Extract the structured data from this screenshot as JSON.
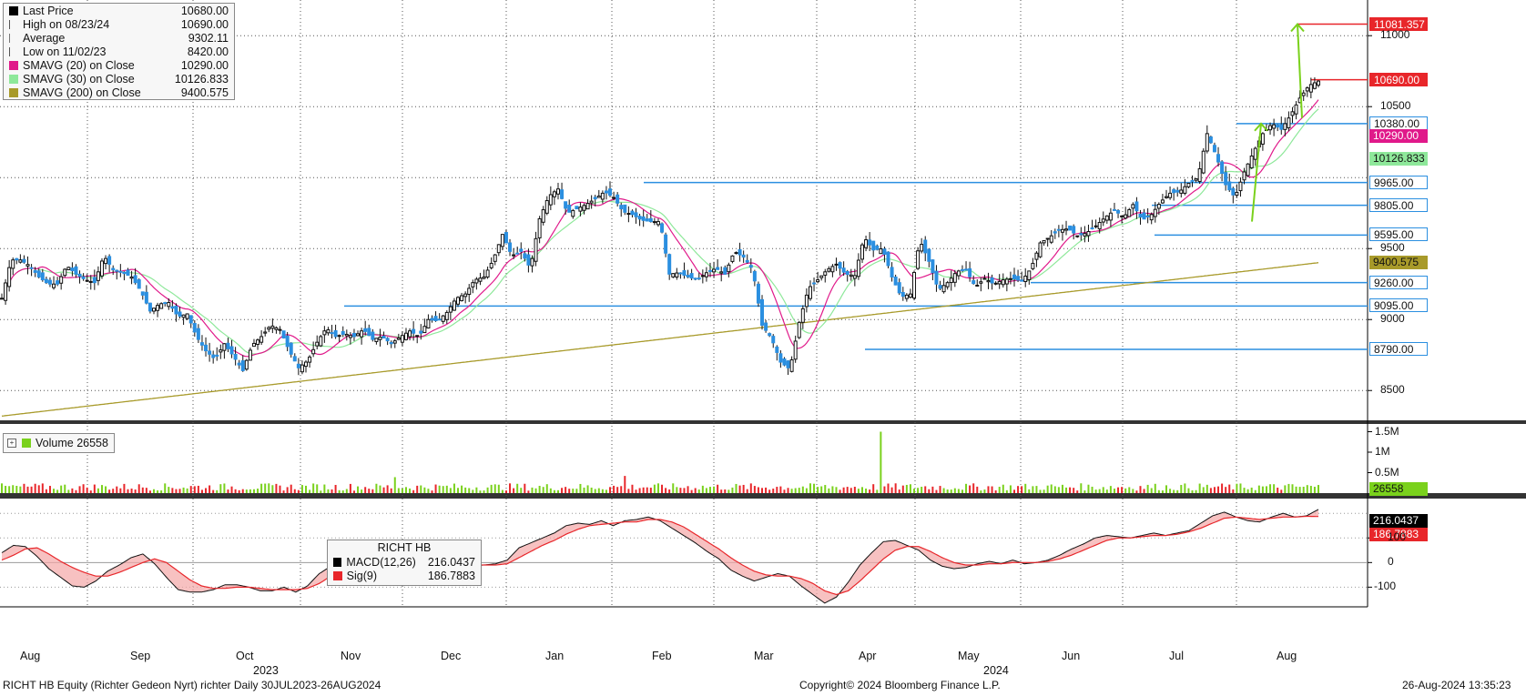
{
  "legend_price": [
    {
      "icon": "black-square-icon",
      "color": "#000000",
      "label": "Last Price",
      "value": "10680.00"
    },
    {
      "icon": "high-marker-icon",
      "color": "#555555",
      "label": "High on 08/23/24",
      "value": "10690.00"
    },
    {
      "icon": "average-marker-icon",
      "color": "#777777",
      "label": "Average",
      "value": "9302.11"
    },
    {
      "icon": "low-marker-icon",
      "color": "#555555",
      "label": "Low on 11/02/23",
      "value": "8420.00"
    },
    {
      "icon": "pink-square-icon",
      "color": "#e0198a",
      "label": "SMAVG (20)  on Close",
      "value": "10290.00"
    },
    {
      "icon": "lightgreen-square-icon",
      "color": "#8ee89a",
      "label": "SMAVG (30)  on Close",
      "value": "10126.833"
    },
    {
      "icon": "olive-square-icon",
      "color": "#a89a2a",
      "label": "SMAVG (200)  on Close",
      "value": "9400.575"
    }
  ],
  "legend_volume": {
    "label": "Volume",
    "value": "26558",
    "color": "#7ad11c"
  },
  "legend_macd": {
    "title": "RICHT HB",
    "rows": [
      {
        "label": "MACD(12,26)",
        "value": "216.0437",
        "color": "#000000"
      },
      {
        "label": "Sig(9)",
        "value": "186.7883",
        "color": "#e8262a"
      }
    ]
  },
  "footer": {
    "left": "RICHT HB Equity (Richter Gedeon Nyrt)  richter   Daily 30JUL2023-26AUG2024",
    "center": "Copyright© 2024 Bloomberg Finance L.P.",
    "right": "26-Aug-2024 13:35:23"
  },
  "chart_data": {
    "type": "candlestick",
    "months": [
      "Aug",
      "Sep",
      "Oct",
      "Nov",
      "Dec",
      "Jan",
      "Feb",
      "Mar",
      "Apr",
      "May",
      "Jun",
      "Jul",
      "Aug"
    ],
    "years": [
      "2023",
      "2024"
    ],
    "price_axis": {
      "ticks": [
        8500,
        9000,
        9500,
        10000,
        10500,
        11000
      ],
      "tick_labels": [
        "8500",
        "9000",
        "9500",
        "",
        "10500",
        "11000"
      ],
      "ylim": [
        8290,
        11200
      ]
    },
    "volume_axis": {
      "ticks": [
        "0.5M",
        "1M",
        "1.5M"
      ],
      "ylim": [
        0,
        1600000
      ]
    },
    "macd_axis": {
      "ticks": [
        -100,
        0,
        100,
        200
      ],
      "tick_labels": [
        "-100",
        "0",
        "100",
        "200"
      ],
      "ylim": [
        -180,
        260
      ]
    },
    "price_anchors": [
      [
        0,
        9150
      ],
      [
        5,
        9420
      ],
      [
        10,
        9420
      ],
      [
        15,
        9380
      ],
      [
        20,
        9300
      ],
      [
        25,
        9250
      ],
      [
        30,
        9250
      ],
      [
        35,
        9380
      ],
      [
        40,
        9320
      ],
      [
        45,
        9280
      ],
      [
        50,
        9260
      ],
      [
        55,
        9450
      ],
      [
        60,
        9350
      ],
      [
        65,
        9330
      ],
      [
        70,
        9300
      ],
      [
        75,
        9200
      ],
      [
        80,
        9060
      ],
      [
        85,
        9110
      ],
      [
        90,
        9120
      ],
      [
        95,
        9020
      ],
      [
        100,
        9040
      ],
      [
        105,
        8880
      ],
      [
        110,
        8780
      ],
      [
        115,
        8720
      ],
      [
        120,
        8830
      ],
      [
        125,
        8740
      ],
      [
        130,
        8640
      ],
      [
        135,
        8820
      ],
      [
        140,
        8880
      ],
      [
        145,
        8960
      ],
      [
        150,
        8930
      ],
      [
        155,
        8780
      ],
      [
        160,
        8660
      ],
      [
        165,
        8710
      ],
      [
        170,
        8840
      ],
      [
        175,
        8940
      ],
      [
        180,
        8880
      ],
      [
        185,
        8900
      ],
      [
        190,
        8880
      ],
      [
        195,
        8930
      ],
      [
        200,
        8860
      ],
      [
        205,
        8880
      ],
      [
        210,
        8830
      ],
      [
        215,
        8880
      ],
      [
        220,
        8920
      ],
      [
        225,
        8880
      ],
      [
        230,
        9000
      ],
      [
        235,
        8990
      ],
      [
        240,
        9050
      ],
      [
        245,
        9150
      ],
      [
        250,
        9180
      ],
      [
        255,
        9280
      ],
      [
        260,
        9300
      ],
      [
        265,
        9420
      ],
      [
        270,
        9600
      ],
      [
        275,
        9450
      ],
      [
        280,
        9480
      ],
      [
        285,
        9360
      ],
      [
        290,
        9710
      ],
      [
        295,
        9870
      ],
      [
        300,
        9920
      ],
      [
        305,
        9750
      ],
      [
        310,
        9780
      ],
      [
        315,
        9810
      ],
      [
        320,
        9850
      ],
      [
        325,
        9900
      ],
      [
        330,
        9860
      ],
      [
        335,
        9760
      ],
      [
        340,
        9740
      ],
      [
        345,
        9700
      ],
      [
        350,
        9690
      ],
      [
        355,
        9690
      ],
      [
        360,
        9320
      ],
      [
        365,
        9330
      ],
      [
        370,
        9300
      ],
      [
        375,
        9280
      ],
      [
        380,
        9330
      ],
      [
        385,
        9360
      ],
      [
        390,
        9320
      ],
      [
        395,
        9480
      ],
      [
        400,
        9440
      ],
      [
        405,
        9350
      ],
      [
        410,
        8960
      ],
      [
        415,
        8870
      ],
      [
        420,
        8700
      ],
      [
        425,
        8650
      ],
      [
        430,
        8980
      ],
      [
        435,
        9220
      ],
      [
        440,
        9280
      ],
      [
        445,
        9350
      ],
      [
        450,
        9390
      ],
      [
        455,
        9320
      ],
      [
        460,
        9310
      ],
      [
        465,
        9580
      ],
      [
        470,
        9490
      ],
      [
        475,
        9500
      ],
      [
        480,
        9300
      ],
      [
        485,
        9160
      ],
      [
        490,
        9180
      ],
      [
        495,
        9560
      ],
      [
        500,
        9410
      ],
      [
        505,
        9210
      ],
      [
        510,
        9260
      ],
      [
        515,
        9340
      ],
      [
        520,
        9350
      ],
      [
        525,
        9230
      ],
      [
        530,
        9290
      ],
      [
        535,
        9250
      ],
      [
        540,
        9280
      ],
      [
        545,
        9290
      ],
      [
        550,
        9270
      ],
      [
        555,
        9360
      ],
      [
        560,
        9540
      ],
      [
        565,
        9580
      ],
      [
        570,
        9630
      ],
      [
        575,
        9640
      ],
      [
        580,
        9590
      ],
      [
        585,
        9610
      ],
      [
        590,
        9660
      ],
      [
        595,
        9720
      ],
      [
        600,
        9770
      ],
      [
        605,
        9720
      ],
      [
        610,
        9810
      ],
      [
        615,
        9700
      ],
      [
        620,
        9740
      ],
      [
        625,
        9830
      ],
      [
        630,
        9890
      ],
      [
        635,
        9900
      ],
      [
        640,
        9960
      ],
      [
        645,
        10000
      ],
      [
        650,
        10310
      ],
      [
        655,
        10150
      ],
      [
        660,
        9950
      ],
      [
        665,
        9860
      ],
      [
        670,
        10040
      ],
      [
        675,
        10180
      ],
      [
        680,
        10310
      ],
      [
        685,
        10380
      ],
      [
        690,
        10340
      ],
      [
        695,
        10440
      ],
      [
        700,
        10560
      ],
      [
        705,
        10650
      ],
      [
        710,
        10680
      ]
    ],
    "volume_spikes": [
      [
        474,
        1500000
      ],
      [
        336,
        420000
      ],
      [
        212,
        390000
      ]
    ],
    "macd_anchors": [
      [
        0,
        40
      ],
      [
        5,
        70
      ],
      [
        10,
        65
      ],
      [
        15,
        25
      ],
      [
        20,
        -25
      ],
      [
        25,
        -60
      ],
      [
        30,
        -95
      ],
      [
        35,
        -100
      ],
      [
        40,
        -75
      ],
      [
        45,
        -35
      ],
      [
        50,
        -10
      ],
      [
        55,
        20
      ],
      [
        60,
        35
      ],
      [
        65,
        -5
      ],
      [
        70,
        -60
      ],
      [
        75,
        -110
      ],
      [
        80,
        -120
      ],
      [
        85,
        -120
      ],
      [
        90,
        -110
      ],
      [
        95,
        -90
      ],
      [
        100,
        -90
      ],
      [
        105,
        -100
      ],
      [
        110,
        -115
      ],
      [
        115,
        -115
      ],
      [
        120,
        -100
      ],
      [
        125,
        -120
      ],
      [
        130,
        -95
      ],
      [
        135,
        -45
      ],
      [
        140,
        -15
      ],
      [
        145,
        35
      ],
      [
        150,
        20
      ],
      [
        155,
        -40
      ],
      [
        160,
        -60
      ],
      [
        165,
        -45
      ],
      [
        170,
        -25
      ],
      [
        175,
        -10
      ],
      [
        180,
        0
      ],
      [
        185,
        5
      ],
      [
        190,
        5
      ],
      [
        195,
        -5
      ],
      [
        200,
        -15
      ],
      [
        205,
        -10
      ],
      [
        210,
        -5
      ],
      [
        215,
        10
      ],
      [
        220,
        60
      ],
      [
        225,
        80
      ],
      [
        230,
        100
      ],
      [
        235,
        120
      ],
      [
        240,
        150
      ],
      [
        245,
        160
      ],
      [
        250,
        155
      ],
      [
        255,
        170
      ],
      [
        260,
        150
      ],
      [
        265,
        170
      ],
      [
        270,
        175
      ],
      [
        275,
        185
      ],
      [
        280,
        170
      ],
      [
        285,
        140
      ],
      [
        290,
        110
      ],
      [
        295,
        80
      ],
      [
        300,
        45
      ],
      [
        305,
        15
      ],
      [
        310,
        -30
      ],
      [
        315,
        -55
      ],
      [
        320,
        -75
      ],
      [
        325,
        -60
      ],
      [
        330,
        -45
      ],
      [
        335,
        -55
      ],
      [
        340,
        -95
      ],
      [
        345,
        -130
      ],
      [
        350,
        -165
      ],
      [
        355,
        -140
      ],
      [
        360,
        -80
      ],
      [
        365,
        -10
      ],
      [
        370,
        40
      ],
      [
        375,
        85
      ],
      [
        380,
        90
      ],
      [
        385,
        70
      ],
      [
        390,
        50
      ],
      [
        395,
        10
      ],
      [
        400,
        -15
      ],
      [
        405,
        -25
      ],
      [
        410,
        -20
      ],
      [
        415,
        -5
      ],
      [
        420,
        5
      ],
      [
        425,
        -5
      ],
      [
        430,
        10
      ],
      [
        435,
        -5
      ],
      [
        440,
        0
      ],
      [
        445,
        10
      ],
      [
        450,
        30
      ],
      [
        455,
        55
      ],
      [
        460,
        75
      ],
      [
        465,
        100
      ],
      [
        470,
        110
      ],
      [
        475,
        105
      ],
      [
        480,
        100
      ],
      [
        485,
        110
      ],
      [
        490,
        120
      ],
      [
        495,
        110
      ],
      [
        500,
        120
      ],
      [
        505,
        130
      ],
      [
        510,
        160
      ],
      [
        515,
        190
      ],
      [
        520,
        205
      ],
      [
        525,
        185
      ],
      [
        530,
        170
      ],
      [
        535,
        165
      ],
      [
        540,
        185
      ],
      [
        545,
        200
      ],
      [
        550,
        185
      ],
      [
        555,
        190
      ],
      [
        560,
        216
      ]
    ],
    "signal_anchors": [
      [
        0,
        10
      ],
      [
        5,
        30
      ],
      [
        10,
        55
      ],
      [
        15,
        60
      ],
      [
        20,
        35
      ],
      [
        25,
        5
      ],
      [
        30,
        -20
      ],
      [
        35,
        -40
      ],
      [
        40,
        -55
      ],
      [
        45,
        -55
      ],
      [
        50,
        -40
      ],
      [
        55,
        -20
      ],
      [
        60,
        0
      ],
      [
        65,
        15
      ],
      [
        70,
        0
      ],
      [
        75,
        -35
      ],
      [
        80,
        -70
      ],
      [
        85,
        -95
      ],
      [
        90,
        -105
      ],
      [
        95,
        -105
      ],
      [
        100,
        -100
      ],
      [
        105,
        -100
      ],
      [
        110,
        -105
      ],
      [
        115,
        -110
      ],
      [
        120,
        -110
      ],
      [
        125,
        -110
      ],
      [
        130,
        -105
      ],
      [
        135,
        -85
      ],
      [
        140,
        -55
      ],
      [
        145,
        -20
      ],
      [
        150,
        5
      ],
      [
        155,
        5
      ],
      [
        160,
        -15
      ],
      [
        165,
        -35
      ],
      [
        170,
        -40
      ],
      [
        175,
        -30
      ],
      [
        180,
        -15
      ],
      [
        185,
        -5
      ],
      [
        190,
        0
      ],
      [
        195,
        0
      ],
      [
        200,
        -5
      ],
      [
        205,
        -10
      ],
      [
        210,
        -10
      ],
      [
        215,
        -5
      ],
      [
        220,
        20
      ],
      [
        225,
        45
      ],
      [
        230,
        70
      ],
      [
        235,
        90
      ],
      [
        240,
        115
      ],
      [
        245,
        135
      ],
      [
        250,
        150
      ],
      [
        255,
        155
      ],
      [
        260,
        160
      ],
      [
        265,
        165
      ],
      [
        270,
        165
      ],
      [
        275,
        175
      ],
      [
        280,
        175
      ],
      [
        285,
        165
      ],
      [
        290,
        145
      ],
      [
        295,
        115
      ],
      [
        300,
        85
      ],
      [
        305,
        55
      ],
      [
        310,
        20
      ],
      [
        315,
        -10
      ],
      [
        320,
        -35
      ],
      [
        325,
        -50
      ],
      [
        330,
        -55
      ],
      [
        335,
        -55
      ],
      [
        340,
        -65
      ],
      [
        345,
        -85
      ],
      [
        350,
        -115
      ],
      [
        355,
        -130
      ],
      [
        360,
        -115
      ],
      [
        365,
        -75
      ],
      [
        370,
        -30
      ],
      [
        375,
        15
      ],
      [
        380,
        50
      ],
      [
        385,
        65
      ],
      [
        390,
        65
      ],
      [
        395,
        45
      ],
      [
        400,
        20
      ],
      [
        405,
        0
      ],
      [
        410,
        -10
      ],
      [
        415,
        -10
      ],
      [
        420,
        -5
      ],
      [
        425,
        -5
      ],
      [
        430,
        0
      ],
      [
        435,
        0
      ],
      [
        440,
        0
      ],
      [
        445,
        5
      ],
      [
        450,
        15
      ],
      [
        455,
        30
      ],
      [
        460,
        50
      ],
      [
        465,
        70
      ],
      [
        470,
        90
      ],
      [
        475,
        100
      ],
      [
        480,
        100
      ],
      [
        485,
        105
      ],
      [
        490,
        110
      ],
      [
        495,
        110
      ],
      [
        500,
        115
      ],
      [
        505,
        125
      ],
      [
        510,
        140
      ],
      [
        515,
        160
      ],
      [
        520,
        180
      ],
      [
        525,
        185
      ],
      [
        530,
        180
      ],
      [
        535,
        175
      ],
      [
        540,
        180
      ],
      [
        545,
        185
      ],
      [
        550,
        185
      ],
      [
        555,
        188
      ],
      [
        560,
        187
      ]
    ],
    "horizontal_levels": [
      {
        "value": 11081.357,
        "color": "#e8262a",
        "label": "11081.357"
      },
      {
        "value": 10690,
        "color": "#e8262a",
        "label": "10690.00"
      },
      {
        "value": 10380,
        "color": "#2b8fe0",
        "label": "10380.00"
      },
      {
        "value": 9965,
        "color": "#2b8fe0",
        "label": "9965.00"
      },
      {
        "value": 9805,
        "color": "#2b8fe0",
        "label": "9805.00"
      },
      {
        "value": 9595,
        "color": "#2b8fe0",
        "label": "9595.00"
      },
      {
        "value": 9260,
        "color": "#2b8fe0",
        "label": "9260.00"
      },
      {
        "value": 9095,
        "color": "#2b8fe0",
        "label": "9095.00"
      },
      {
        "value": 8790,
        "color": "#2b8fe0",
        "label": "8790.00"
      }
    ],
    "last_value_tags": [
      {
        "label": "10290.00",
        "color": "#e0198a",
        "value": 10290
      },
      {
        "label": "10126.833",
        "color": "#8ee89a",
        "value": 10126.833
      },
      {
        "label": "9400.575",
        "color": "#a89a2a",
        "value": 9400.575
      }
    ],
    "volume_last_tag": {
      "label": "26558",
      "color": "#7ad11c"
    },
    "macd_last_tags": [
      {
        "label": "216.0437",
        "color": "#000000"
      },
      {
        "label": "186.7883",
        "color": "#e8262a"
      }
    ]
  }
}
